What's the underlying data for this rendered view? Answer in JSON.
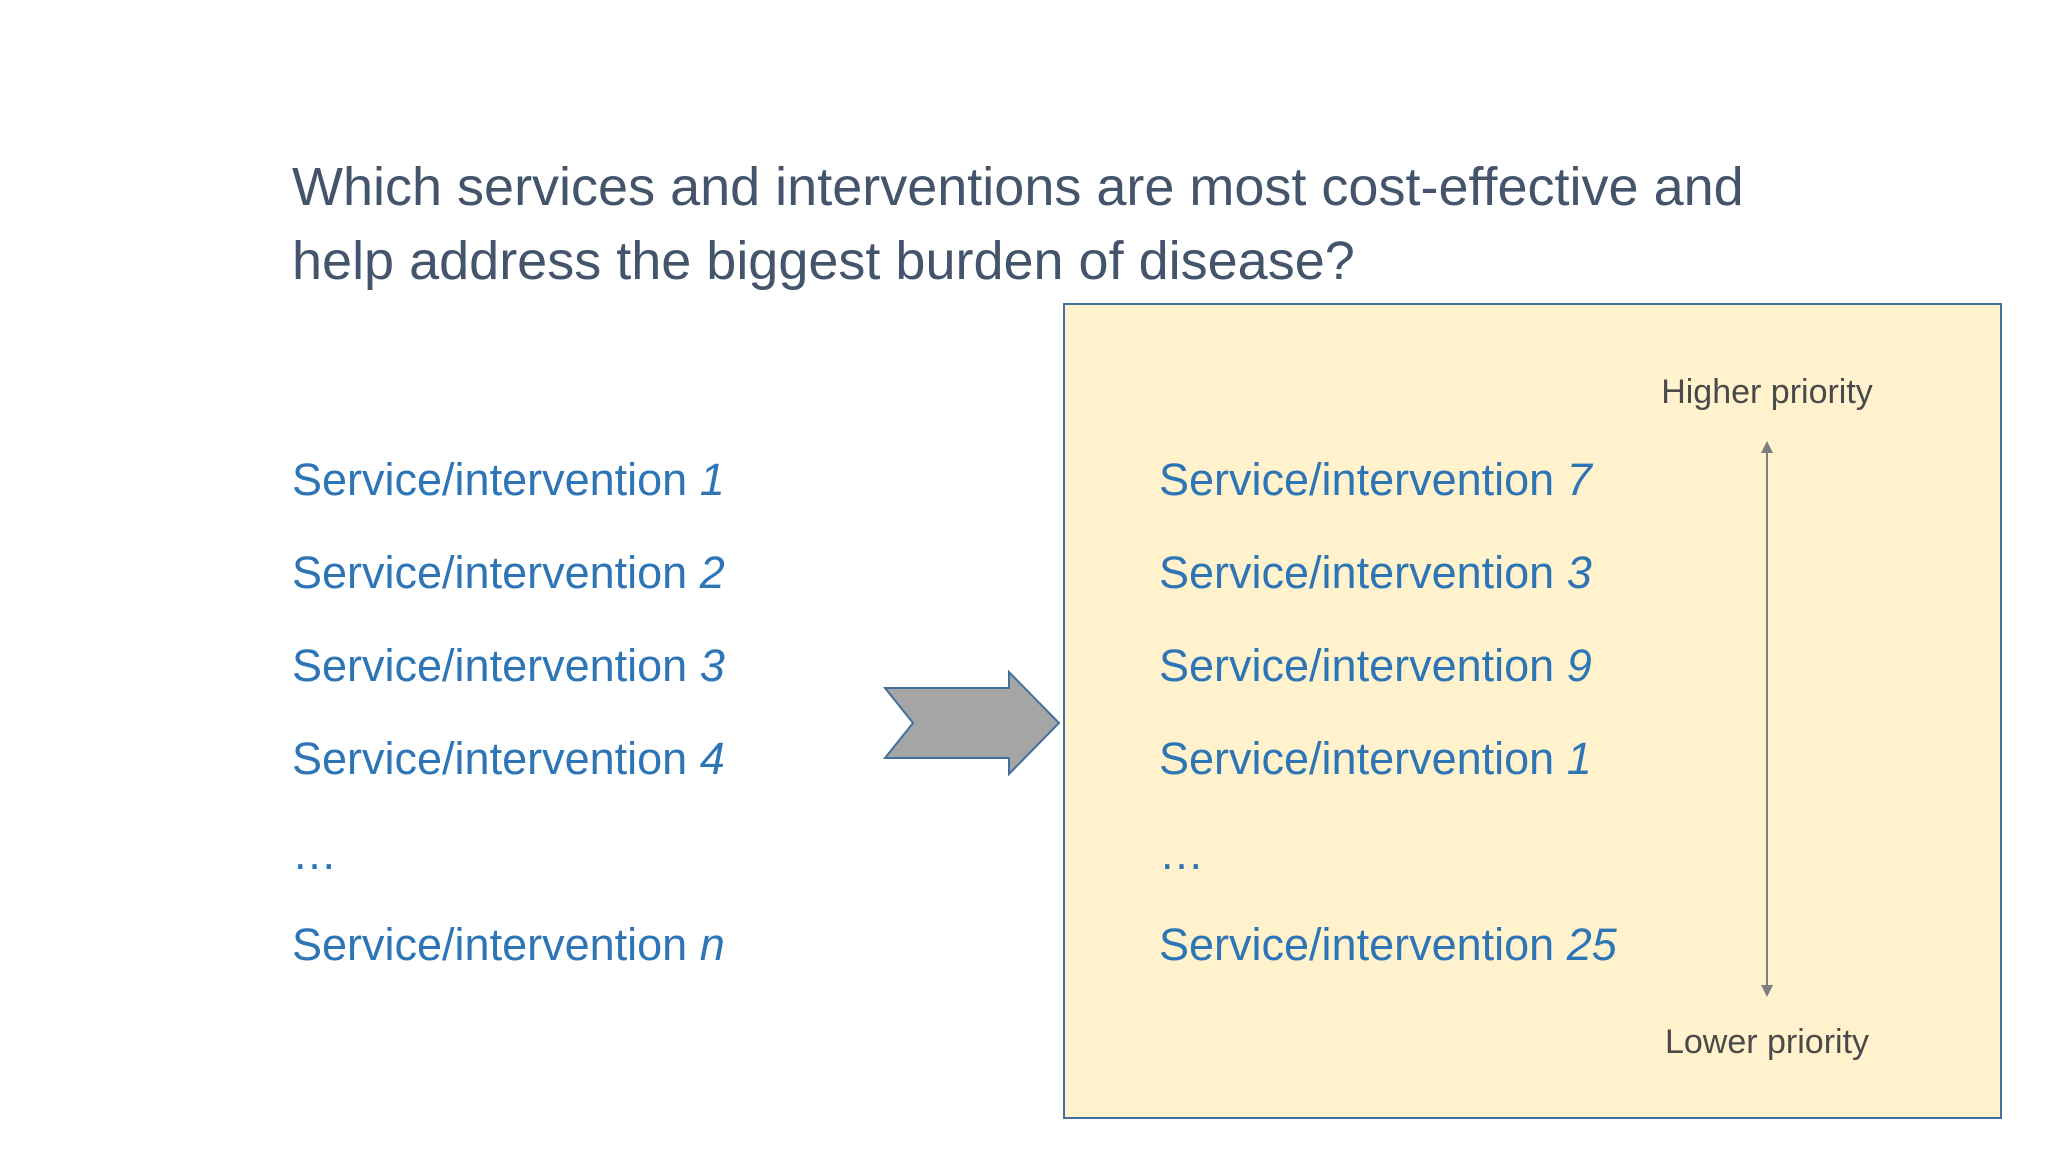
{
  "title": {
    "line1": "Which services and interventions are most cost-effective and",
    "line2": "help address the biggest burden of disease?"
  },
  "unranked_list": [
    {
      "prefix": "Service/intervention ",
      "num": "1"
    },
    {
      "prefix": "Service/intervention ",
      "num": "2"
    },
    {
      "prefix": "Service/intervention ",
      "num": "3"
    },
    {
      "prefix": "Service/intervention ",
      "num": "4"
    },
    {
      "prefix": "…",
      "num": ""
    },
    {
      "prefix": "Service/intervention ",
      "num": "n"
    }
  ],
  "ranked_list": [
    {
      "prefix": "Service/intervention ",
      "num": "7"
    },
    {
      "prefix": "Service/intervention ",
      "num": "3"
    },
    {
      "prefix": "Service/intervention ",
      "num": "9"
    },
    {
      "prefix": "Service/intervention ",
      "num": "1"
    },
    {
      "prefix": "…",
      "num": ""
    },
    {
      "prefix": "Service/intervention ",
      "num": "25"
    }
  ],
  "priority": {
    "higher": "Higher priority",
    "lower": "Lower priority"
  },
  "colors": {
    "title": "#44546a",
    "list_text": "#2e75b6",
    "box_fill": "#fff2cc",
    "box_border": "#41719c",
    "arrow_fill": "#a5a5a5",
    "arrow_border": "#41719c"
  }
}
